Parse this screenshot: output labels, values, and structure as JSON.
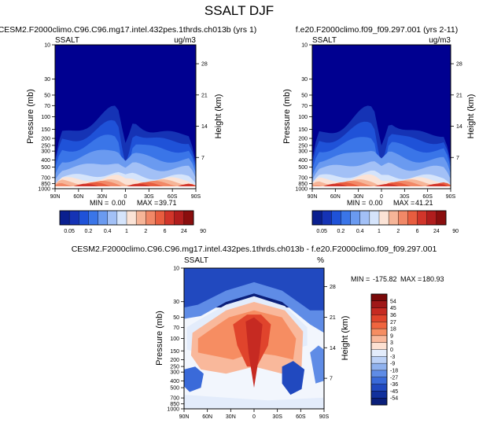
{
  "figure": {
    "title": "SSALT DJF"
  },
  "chart_data": [
    {
      "type": "heatmap",
      "panel": "top-left",
      "title": "CESM2.F2000climo.C96.C96.mg17.intel.432pes.1thrds.ch013b (yrs 1)",
      "left_label": "SSALT",
      "units": "ug/m3",
      "ylabel": "Pressure (mb)",
      "y2label": "Height (km)",
      "x_ticks": [
        "90N",
        "60N",
        "30N",
        "0",
        "30S",
        "60S",
        "90S"
      ],
      "y_ticks": [
        "10",
        "30",
        "50",
        "70",
        "100",
        "150",
        "200",
        "250",
        "300",
        "400",
        "500",
        "700",
        "850",
        "1000"
      ],
      "y2_ticks": [
        "28",
        "21",
        "14",
        "7"
      ],
      "stats": {
        "min_label": "MIN =",
        "min": "0.00",
        "max_label": "MAX =",
        "max": "39.71"
      },
      "field": {
        "upper_level_mb": 70,
        "surface_max": 39.71
      }
    },
    {
      "type": "heatmap",
      "panel": "top-right",
      "title": "f.e20.F2000climo.f09_f09.297.001 (yrs 2-11)",
      "left_label": "SSALT",
      "units": "ug/m3",
      "ylabel": "Pressure (mb)",
      "y2label": "Height (km)",
      "x_ticks": [
        "90N",
        "60N",
        "30N",
        "0",
        "30S",
        "60S",
        "90S"
      ],
      "y_ticks": [
        "10",
        "30",
        "50",
        "70",
        "100",
        "150",
        "200",
        "250",
        "300",
        "400",
        "500",
        "700",
        "850",
        "1000"
      ],
      "y2_ticks": [
        "28",
        "21",
        "14",
        "7"
      ],
      "stats": {
        "min_label": "MIN =",
        "min": "0.00",
        "max_label": "MAX =",
        "max": "41.21"
      },
      "field": {
        "upper_level_mb": 70,
        "surface_max": 41.21
      }
    },
    {
      "type": "heatmap",
      "panel": "bottom-center",
      "title": "CESM2.F2000climo.C96.C96.mg17.intel.432pes.1thrds.ch013b - f.e20.F2000climo.f09_f09.297.001",
      "left_label": "SSALT",
      "units": "%",
      "ylabel": "Pressure (mb)",
      "y2label": "Height (km)",
      "x_ticks": [
        "90N",
        "60N",
        "30N",
        "0",
        "30S",
        "60S",
        "90S"
      ],
      "y_ticks": [
        "10",
        "30",
        "50",
        "70",
        "100",
        "150",
        "200",
        "250",
        "300",
        "400",
        "500",
        "700",
        "850",
        "1000"
      ],
      "y2_ticks": [
        "28",
        "21",
        "14",
        "7"
      ],
      "stats": {
        "min_label": "MIN =",
        "min": "-175.82",
        "max_label": "MAX =",
        "max": "180.93"
      },
      "field": {
        "upper_level_mb": 30
      }
    }
  ],
  "colorbars": {
    "abs": {
      "labels": [
        "0.05",
        "0.2",
        "0.4",
        "1",
        "2",
        "6",
        "24",
        "90"
      ],
      "colors": [
        "#0a1f8f",
        "#1533b5",
        "#1f52d8",
        "#3a75e8",
        "#6a9af0",
        "#a2c0f6",
        "#d5e4fb",
        "#fbe3d6",
        "#f6b598",
        "#f18867",
        "#e85d3f",
        "#d1352a",
        "#b01d1d",
        "#8a0e0e"
      ]
    },
    "diff": {
      "labels": [
        "54",
        "45",
        "36",
        "27",
        "18",
        "9",
        "3",
        "0",
        "-3",
        "-9",
        "-18",
        "-27",
        "-36",
        "-45",
        "-54"
      ],
      "colors": [
        "#7a0a0a",
        "#a01818",
        "#c62a22",
        "#e0442c",
        "#f0653f",
        "#f68d62",
        "#f9b89b",
        "#fde1d2",
        "#e3ecfb",
        "#bcd1f6",
        "#8fb1ee",
        "#5f8ce6",
        "#3a6ad9",
        "#2149bf",
        "#11309c",
        "#0a1f7a"
      ]
    }
  }
}
